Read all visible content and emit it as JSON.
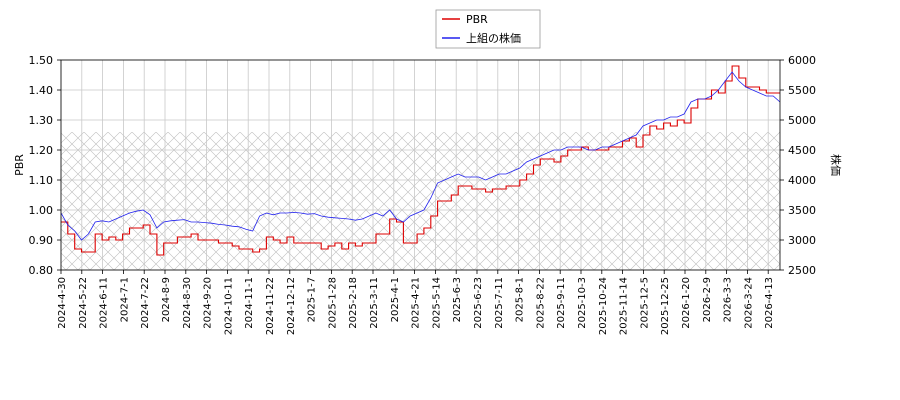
{
  "chart_data": {
    "type": "line",
    "title": "",
    "legend": {
      "placement": "top-center",
      "entries": [
        {
          "label": "PBR",
          "color": "#dd0000"
        },
        {
          "label": "上組の株価",
          "color": "#2222ee"
        }
      ]
    },
    "left_axis": {
      "label": "PBR",
      "ylim": [
        0.8,
        1.5
      ],
      "ticks": [
        "0.80",
        "0.90",
        "1.00",
        "1.10",
        "1.20",
        "1.30",
        "1.40",
        "1.50"
      ]
    },
    "right_axis": {
      "label": "株価",
      "ylim": [
        2500,
        6000
      ],
      "ticks": [
        "2500",
        "3000",
        "3500",
        "4000",
        "4500",
        "5000",
        "5500",
        "6000"
      ]
    },
    "x_ticks": [
      "2024-4-30",
      "2024-5-22",
      "2024-6-11",
      "2024-7-1",
      "2024-7-22",
      "2024-8-9",
      "2024-8-30",
      "2024-9-20",
      "2024-10-11",
      "2024-11-1",
      "2024-11-22",
      "2024-12-12",
      "2025-1-7",
      "2025-1-28",
      "2025-2-18",
      "2025-3-11",
      "2025-4-1",
      "2025-4-21",
      "2025-5-14",
      "2025-6-3",
      "2025-6-23",
      "2025-7-11",
      "2025-8-1",
      "2025-8-22",
      "2025-9-11",
      "2025-10-3",
      "2025-10-24",
      "2025-11-14",
      "2025-12-5",
      "2025-12-25",
      "2026-1-20",
      "2026-2-9",
      "2026-3-3",
      "2026-3-24",
      "2026-4-13"
    ],
    "grid": true,
    "hatched_band": {
      "from": 0.8,
      "to": 1.26
    },
    "series": [
      {
        "name": "PBR",
        "axis": "left",
        "color": "#dd0000",
        "values": [
          0.96,
          0.92,
          0.87,
          0.86,
          0.86,
          0.92,
          0.9,
          0.91,
          0.9,
          0.92,
          0.94,
          0.94,
          0.95,
          0.92,
          0.85,
          0.89,
          0.89,
          0.91,
          0.91,
          0.92,
          0.9,
          0.9,
          0.9,
          0.89,
          0.89,
          0.88,
          0.87,
          0.87,
          0.86,
          0.87,
          0.91,
          0.9,
          0.89,
          0.91,
          0.89,
          0.89,
          0.89,
          0.89,
          0.87,
          0.88,
          0.89,
          0.87,
          0.89,
          0.88,
          0.89,
          0.89,
          0.92,
          0.92,
          0.97,
          0.96,
          0.89,
          0.89,
          0.92,
          0.94,
          0.98,
          1.03,
          1.03,
          1.05,
          1.08,
          1.08,
          1.07,
          1.07,
          1.06,
          1.07,
          1.07,
          1.08,
          1.08,
          1.1,
          1.12,
          1.15,
          1.17,
          1.17,
          1.16,
          1.18,
          1.2,
          1.2,
          1.21,
          1.2,
          1.2,
          1.2,
          1.21,
          1.21,
          1.23,
          1.24,
          1.21,
          1.25,
          1.28,
          1.27,
          1.29,
          1.28,
          1.3,
          1.29,
          1.34,
          1.37,
          1.37,
          1.4,
          1.39,
          1.43,
          1.48,
          1.44,
          1.41,
          1.41,
          1.4,
          1.39,
          1.39,
          1.39
        ],
        "values_full": null
      },
      {
        "name": "上組の株価",
        "axis": "right",
        "color": "#2222ee",
        "values": [
          3450,
          3250,
          3150,
          3000,
          3100,
          3300,
          3320,
          3300,
          3350,
          3400,
          3450,
          3480,
          3500,
          3420,
          3200,
          3300,
          3320,
          3330,
          3340,
          3300,
          3300,
          3290,
          3280,
          3260,
          3250,
          3230,
          3220,
          3180,
          3150,
          3400,
          3450,
          3420,
          3450,
          3450,
          3460,
          3450,
          3430,
          3440,
          3400,
          3380,
          3370,
          3360,
          3350,
          3330,
          3350,
          3400,
          3450,
          3400,
          3500,
          3350,
          3300,
          3400,
          3450,
          3500,
          3700,
          3950,
          4000,
          4050,
          4100,
          4050,
          4050,
          4050,
          4000,
          4050,
          4100,
          4100,
          4150,
          4200,
          4300,
          4350,
          4400,
          4450,
          4500,
          4500,
          4550,
          4550,
          4550,
          4500,
          4500,
          4550,
          4550,
          4600,
          4650,
          4700,
          4750,
          4900,
          4950,
          5000,
          5000,
          5050,
          5050,
          5100,
          5300,
          5350,
          5350,
          5400,
          5500,
          5650,
          5800,
          5650,
          5550,
          5500,
          5450,
          5400,
          5400,
          5300
        ]
      }
    ]
  }
}
